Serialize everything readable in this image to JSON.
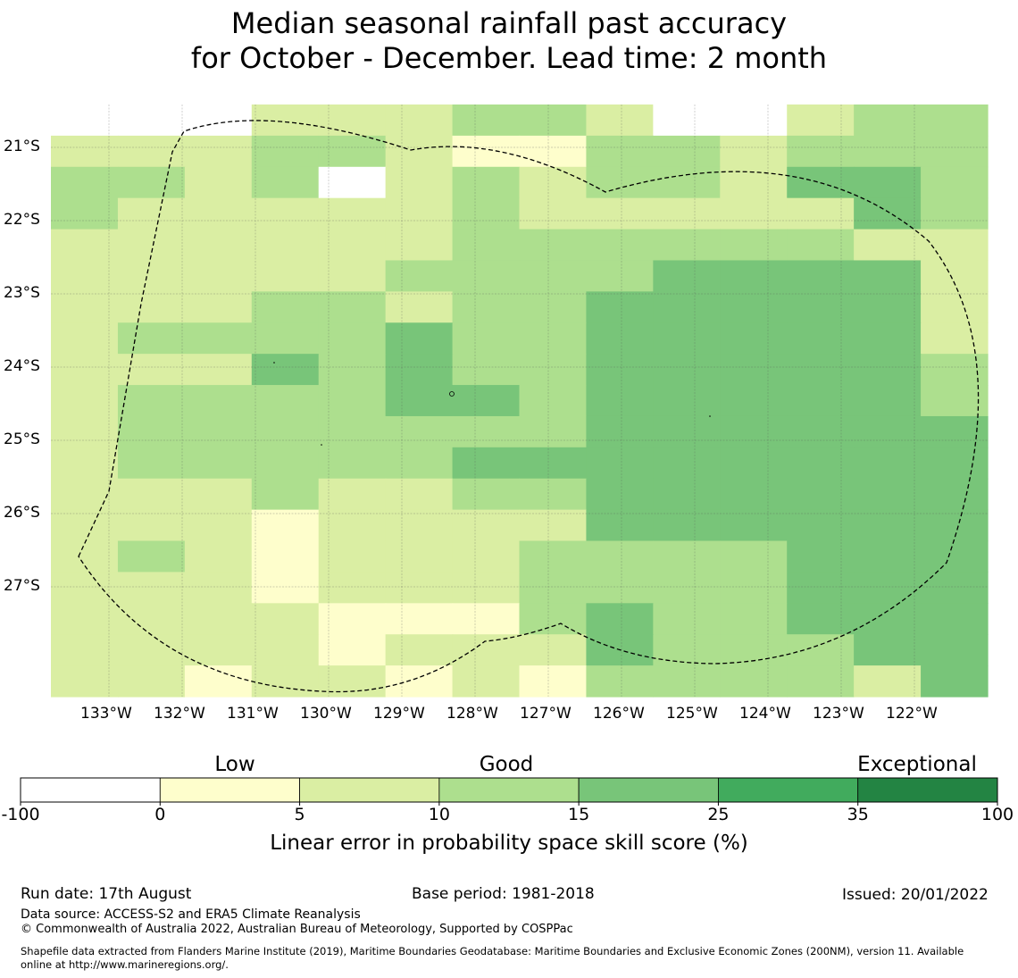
{
  "title_line1": "Median seasonal rainfall past accuracy",
  "title_line2": "for October - December. Lead time: 2 month",
  "map": {
    "lon_labels": [
      "133°W",
      "132°W",
      "131°W",
      "130°W",
      "129°W",
      "128°W",
      "127°W",
      "126°W",
      "125°W",
      "124°W",
      "123°W",
      "122°W"
    ],
    "lat_labels": [
      "21°S",
      "22°S",
      "23°S",
      "24°S",
      "25°S",
      "26°S",
      "27°S"
    ],
    "grid_levels": [
      "00022233200233",
      "22233211332333",
      "33230232332443",
      "32222232222243",
      "22222233333322",
      "22222333344442",
      "22233233444442",
      "23333433444442",
      "22243433444443",
      "23333443444443",
      "23333333444444",
      "23333344444444",
      "22232233444444",
      "22212222444444",
      "23212223333444",
      "22212223333444",
      "22221113433444",
      "22221222433344",
      "22122121333324"
    ]
  },
  "colorbar": {
    "categories": [
      "Low",
      "Good",
      "Exceptional"
    ],
    "ticks": [
      "-100",
      "0",
      "5",
      "10",
      "15",
      "25",
      "35",
      "100"
    ],
    "colors": [
      "#ffffff",
      "#fefecc",
      "#daeea3",
      "#addf8e",
      "#78c579",
      "#41ab5d",
      "#238443"
    ],
    "title": "Linear error in probability space skill score (%)"
  },
  "footer": {
    "run_date": "Run date: 17th August",
    "base_period": "Base period: 1981-2018",
    "issued": "Issued: 20/01/2022",
    "data_source": "Data source: ACCESS-S2 and ERA5 Climate Reanalysis",
    "copyright": "© Commonwealth of Australia 2022, Australian Bureau of Meteorology, Supported by COSPPac",
    "shapefile_line1": "Shapefile data extracted from Flanders Marine Institute (2019), Maritime Boundaries Geodatabase: Maritime Boundaries and Exclusive Economic Zones (200NM), version 11. Available",
    "shapefile_line2": "online at http://www.marineregions.org/."
  }
}
